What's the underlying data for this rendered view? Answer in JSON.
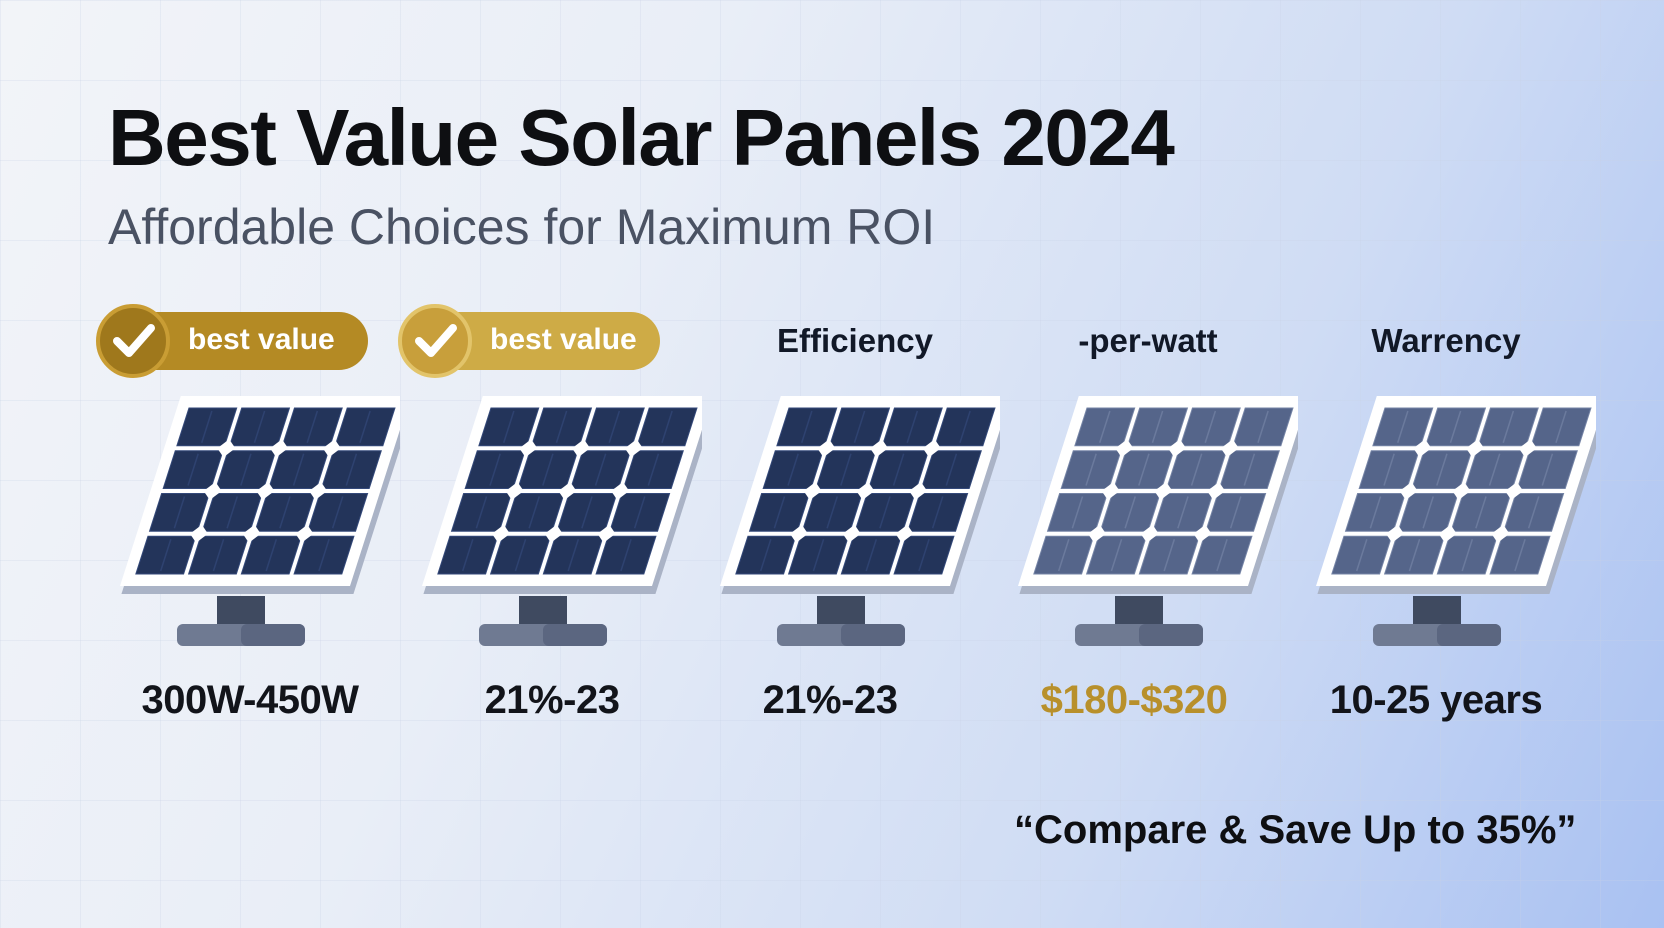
{
  "header": {
    "title": "Best Value Solar Panels 2024",
    "subtitle": "Affordable Choices for Maximum ROI"
  },
  "columns": [
    {
      "badge": "best value",
      "label": "",
      "value": "300W-450W",
      "panel_tone": "dark"
    },
    {
      "badge": "best value",
      "label": "",
      "value": "21%-23",
      "panel_tone": "dark"
    },
    {
      "badge": "",
      "label": "Efficiency",
      "value": "21%-23",
      "panel_tone": "dark"
    },
    {
      "badge": "",
      "label": "-per-watt",
      "value": "$180-$320",
      "panel_tone": "light"
    },
    {
      "badge": "",
      "label": "Warrency",
      "value": "10-25 years",
      "panel_tone": "light"
    }
  ],
  "footer": {
    "tagline": "“Compare & Save Up to 35%”"
  },
  "colors": {
    "gold": "#b8902b",
    "panel_dark": "#23345a",
    "panel_light": "#55658a"
  },
  "icons": {
    "badge": "check-icon",
    "panel": "solar-panel-icon"
  }
}
